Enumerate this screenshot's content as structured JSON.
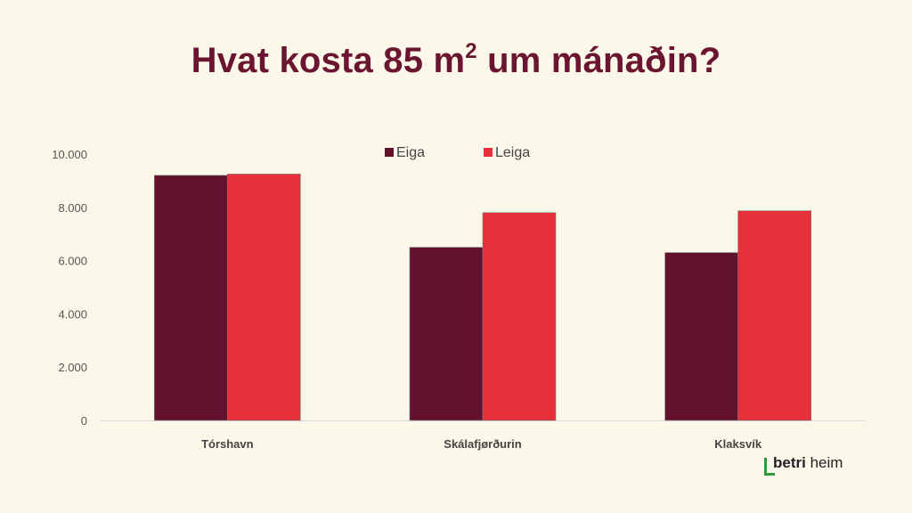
{
  "title": {
    "prefix": "Hvat kosta 85 m",
    "superscript": "2",
    "suffix": " um mánaðin?"
  },
  "brand": {
    "word1": "betri",
    "word2": " heim",
    "accent_color": "#2e9a3e"
  },
  "colors": {
    "background": "#fbf7e9",
    "title": "#6b1530",
    "eiga": "#62122e",
    "leiga": "#e8303a"
  },
  "chart_data": {
    "type": "bar",
    "categories": [
      "Tórshavn",
      "Skálafjørðurin",
      "Klaksvík"
    ],
    "series": [
      {
        "name": "Eiga",
        "values": [
          9200,
          6500,
          6300
        ],
        "color": "#62122e"
      },
      {
        "name": "Leiga",
        "values": [
          9250,
          7800,
          7870
        ],
        "color": "#e8303a"
      }
    ],
    "y_ticks": [
      "0",
      "2.000",
      "4.000",
      "6.000",
      "8.000",
      "10.000"
    ],
    "y_tick_values": [
      0,
      2000,
      4000,
      6000,
      8000,
      10000
    ],
    "ylim": [
      0,
      10000
    ],
    "legend_position": "top-center",
    "grid": false
  }
}
